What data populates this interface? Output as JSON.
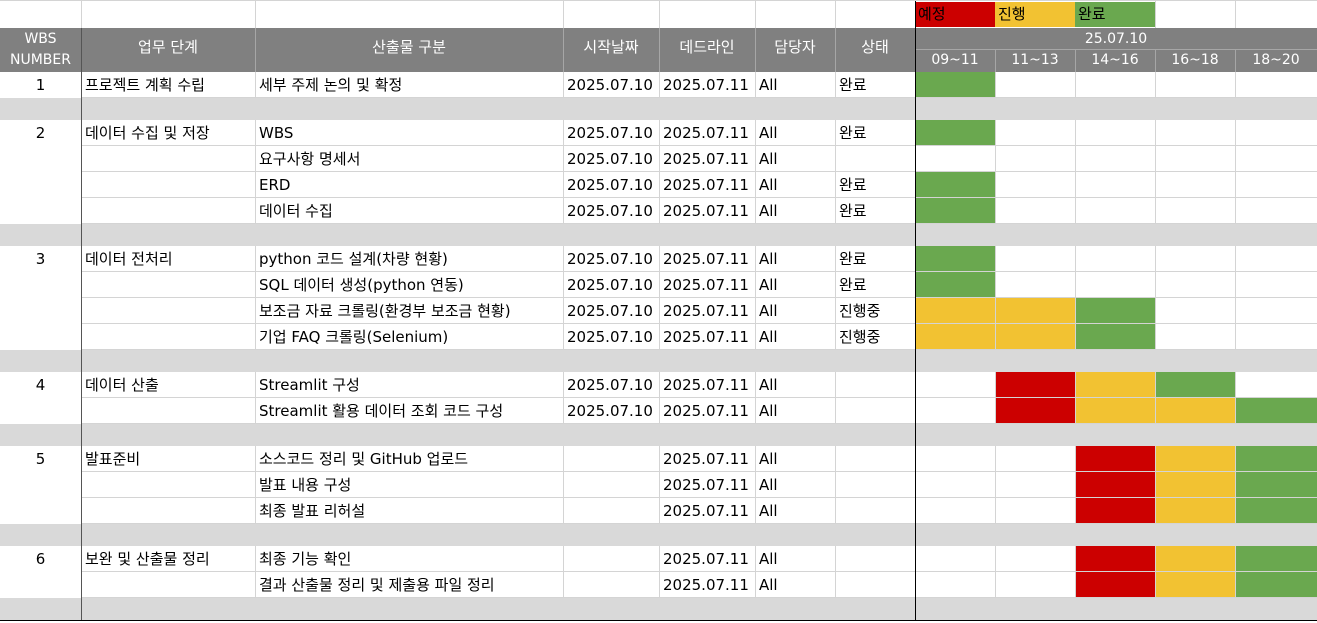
{
  "legend": {
    "planned": {
      "label": "예정",
      "color": "#cc0000"
    },
    "in_progress": {
      "label": "진행",
      "color": "#f2c232"
    },
    "done": {
      "label": "완료",
      "color": "#6aa84f"
    }
  },
  "header": {
    "wbs_line1": "WBS",
    "wbs_line2": "NUMBER",
    "stage": "업무 단계",
    "deliverable": "산출물 구분",
    "start": "시작날짜",
    "deadline": "데드라인",
    "owner": "담당자",
    "status": "상태",
    "date": "25.07.10",
    "slots": [
      "09~11",
      "11~13",
      "14~16",
      "16~18",
      "18~20"
    ]
  },
  "rows": [
    {
      "wbs": "1",
      "stage": "프로젝트 계획 수립",
      "deliverable": "세부 주제 논의 및 확정",
      "start": "2025.07.10",
      "deadline": "2025.07.11",
      "owner": "All",
      "status": "완료",
      "gantt": [
        "done",
        null,
        null,
        null,
        null
      ]
    },
    {
      "spacer": true
    },
    {
      "wbs": "2",
      "stage": "데이터 수집 및 저장",
      "deliverable": "WBS",
      "start": "2025.07.10",
      "deadline": "2025.07.11",
      "owner": "All",
      "status": "완료",
      "gantt": [
        "done",
        null,
        null,
        null,
        null
      ]
    },
    {
      "wbs": "",
      "stage": "",
      "deliverable": "요구사항 명세서",
      "start": "2025.07.10",
      "deadline": "2025.07.11",
      "owner": "All",
      "status": "",
      "gantt": [
        null,
        null,
        null,
        null,
        null
      ]
    },
    {
      "wbs": "",
      "stage": "",
      "deliverable": "ERD",
      "start": "2025.07.10",
      "deadline": "2025.07.11",
      "owner": "All",
      "status": "완료",
      "gantt": [
        "done",
        null,
        null,
        null,
        null
      ]
    },
    {
      "wbs": "",
      "stage": "",
      "deliverable": "데이터 수집",
      "start": "2025.07.10",
      "deadline": "2025.07.11",
      "owner": "All",
      "status": "완료",
      "gantt": [
        "done",
        null,
        null,
        null,
        null
      ]
    },
    {
      "spacer": true
    },
    {
      "wbs": "3",
      "stage": "데이터 전처리",
      "deliverable": "python 코드 설계(차량 현황)",
      "start": "2025.07.10",
      "deadline": "2025.07.11",
      "owner": "All",
      "status": "완료",
      "gantt": [
        "done",
        null,
        null,
        null,
        null
      ]
    },
    {
      "wbs": "",
      "stage": "",
      "deliverable": "SQL 데이터 생성(python 연동)",
      "start": "2025.07.10",
      "deadline": "2025.07.11",
      "owner": "All",
      "status": "완료",
      "gantt": [
        "done",
        null,
        null,
        null,
        null
      ]
    },
    {
      "wbs": "",
      "stage": "",
      "deliverable": "보조금 자료 크롤링(환경부 보조금 현황)",
      "start": "2025.07.10",
      "deadline": "2025.07.11",
      "owner": "All",
      "status": "진행중",
      "gantt": [
        "in_progress",
        "in_progress",
        "done",
        null,
        null
      ]
    },
    {
      "wbs": "",
      "stage": "",
      "deliverable": "기업 FAQ 크롤링(Selenium)",
      "start": "2025.07.10",
      "deadline": "2025.07.11",
      "owner": "All",
      "status": "진행중",
      "gantt": [
        "in_progress",
        "in_progress",
        "done",
        null,
        null
      ]
    },
    {
      "spacer": true
    },
    {
      "wbs": "4",
      "stage": "데이터 산출",
      "deliverable": "Streamlit 구성",
      "start": "2025.07.10",
      "deadline": "2025.07.11",
      "owner": "All",
      "status": "",
      "gantt": [
        null,
        "planned",
        "in_progress",
        "done",
        null
      ]
    },
    {
      "wbs": "",
      "stage": "",
      "deliverable": "Streamlit 활용 데이터 조회 코드 구성",
      "start": "2025.07.10",
      "deadline": "2025.07.11",
      "owner": "All",
      "status": "",
      "gantt": [
        null,
        "planned",
        "in_progress",
        "in_progress",
        "done"
      ]
    },
    {
      "spacer": true
    },
    {
      "wbs": "5",
      "stage": "발표준비",
      "deliverable": "소스코드 정리 및 GitHub 업로드",
      "start": "",
      "deadline": "2025.07.11",
      "owner": "All",
      "status": "",
      "gantt": [
        null,
        null,
        "planned",
        "in_progress",
        "done"
      ]
    },
    {
      "wbs": "",
      "stage": "",
      "deliverable": "발표 내용 구성",
      "start": "",
      "deadline": "2025.07.11",
      "owner": "All",
      "status": "",
      "gantt": [
        null,
        null,
        "planned",
        "in_progress",
        "done"
      ]
    },
    {
      "wbs": "",
      "stage": "",
      "deliverable": "최종 발표 리허설",
      "start": "",
      "deadline": "2025.07.11",
      "owner": "All",
      "status": "",
      "gantt": [
        null,
        null,
        "planned",
        "in_progress",
        "done"
      ]
    },
    {
      "spacer": true
    },
    {
      "wbs": "6",
      "stage": "보완 및 산출물 정리",
      "deliverable": "최종 기능 확인",
      "start": "",
      "deadline": "2025.07.11",
      "owner": "All",
      "status": "",
      "gantt": [
        null,
        null,
        "planned",
        "in_progress",
        "done"
      ]
    },
    {
      "wbs": "",
      "stage": "",
      "deliverable": "결과 산출물 정리 및 제출용 파일 정리",
      "start": "",
      "deadline": "2025.07.11",
      "owner": "All",
      "status": "",
      "gantt": [
        null,
        null,
        "planned",
        "in_progress",
        "done"
      ]
    },
    {
      "spacer": true
    }
  ]
}
